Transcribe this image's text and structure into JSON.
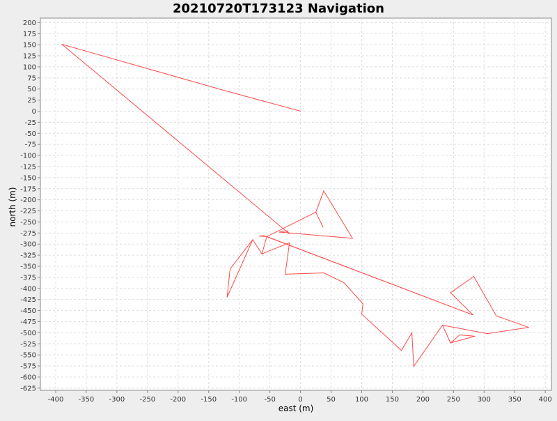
{
  "chart_data": {
    "type": "line",
    "title": "20210720T173123 Navigation",
    "xlabel": "east (m)",
    "ylabel": "north (m)",
    "xlim": [
      -425,
      410
    ],
    "ylim": [
      -630,
      210
    ],
    "x_ticks": [
      -400,
      -350,
      -300,
      -250,
      -200,
      -150,
      -100,
      -50,
      0,
      50,
      100,
      150,
      200,
      250,
      300,
      350,
      400
    ],
    "y_ticks": [
      200,
      175,
      150,
      125,
      100,
      75,
      50,
      25,
      0,
      -25,
      -50,
      -75,
      -100,
      -125,
      -150,
      -175,
      -200,
      -225,
      -250,
      -275,
      -300,
      -325,
      -350,
      -375,
      -400,
      -425,
      -450,
      -475,
      -500,
      -525,
      -550,
      -575,
      -600,
      -625
    ],
    "grid": true,
    "colors": {
      "line": "#ff4a4a",
      "grid": "#dddddd",
      "axis": "#888888",
      "background": "#ffffff",
      "page": "#eeeeee"
    },
    "series": [
      {
        "points": [
          [
            0,
            0
          ],
          [
            -120,
            45
          ],
          [
            -390,
            151
          ],
          [
            -18,
            -277
          ],
          [
            -22,
            -270
          ],
          [
            -35,
            -273
          ],
          [
            85,
            -287
          ],
          [
            38,
            -180
          ],
          [
            25,
            -228
          ],
          [
            37,
            -262
          ],
          [
            25,
            -228
          ],
          [
            -55,
            -283
          ],
          [
            -68,
            -282
          ],
          [
            -60,
            -281
          ],
          [
            282,
            -460
          ],
          [
            245,
            -410
          ],
          [
            283,
            -373
          ],
          [
            320,
            -462
          ],
          [
            373,
            -488
          ],
          [
            305,
            -502
          ],
          [
            232,
            -483
          ],
          [
            245,
            -523
          ],
          [
            285,
            -508
          ],
          [
            260,
            -505
          ],
          [
            245,
            -523
          ],
          [
            232,
            -483
          ],
          [
            305,
            -502
          ],
          [
            373,
            -488
          ],
          [
            320,
            -462
          ],
          [
            283,
            -373
          ],
          [
            245,
            -410
          ],
          [
            282,
            -460
          ],
          [
            -55,
            -283
          ],
          [
            -63,
            -322
          ],
          [
            -78,
            -290
          ],
          [
            -120,
            -420
          ],
          [
            -115,
            -356
          ],
          [
            -78,
            -290
          ],
          [
            -63,
            -322
          ],
          [
            -18,
            -297
          ],
          [
            -25,
            -368
          ],
          [
            38,
            -365
          ],
          [
            71,
            -387
          ],
          [
            102,
            -435
          ],
          [
            100,
            -458
          ],
          [
            165,
            -540
          ],
          [
            182,
            -500
          ],
          [
            185,
            -576
          ],
          [
            232,
            -483
          ]
        ]
      }
    ]
  }
}
